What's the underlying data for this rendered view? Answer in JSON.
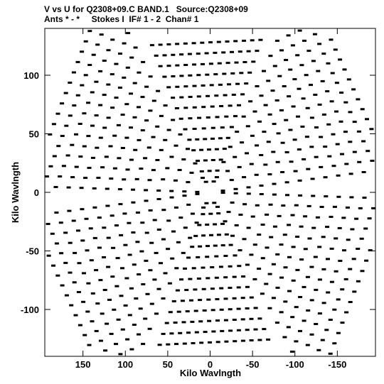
{
  "header": {
    "line1": "V vs U for Q2308+09.C BAND.1   Source:Q2308+09",
    "line2": "Ants * - *     Stokes I  IF# 1 - 2  Chan# 1"
  },
  "chart_data": {
    "type": "scatter",
    "title": "V vs U for Q2308+09.C BAND.1   Source:Q2308+09",
    "subtitle": "Ants * - *     Stokes I  IF# 1 - 2  Chan# 1",
    "xlabel": "Kilo Wavlngth",
    "ylabel": "Kilo Wavlngth",
    "xlim": [
      195,
      -195
    ],
    "ylim": [
      -140,
      140
    ],
    "xticks": [
      150,
      100,
      50,
      0,
      -50,
      -100,
      -150
    ],
    "yticks": [
      100,
      50,
      0,
      -50,
      -100
    ],
    "grid": false,
    "color": "#000000",
    "pattern": "six-armed uv coverage star; samples along radial spokes",
    "spokes": [
      {
        "angle_deg": 28,
        "length": 190
      },
      {
        "angle_deg": 88,
        "length": 128
      },
      {
        "angle_deg": 148,
        "length": 190
      },
      {
        "angle_deg": 208,
        "length": 190
      },
      {
        "angle_deg": 268,
        "length": 128
      },
      {
        "angle_deg": 328,
        "length": 190
      }
    ]
  }
}
